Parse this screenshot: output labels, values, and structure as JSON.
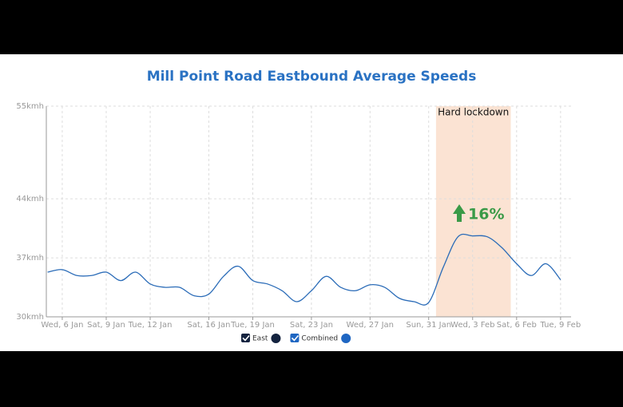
{
  "chart_data": {
    "type": "line",
    "title": "Mill Point Road Eastbound Average Speeds",
    "categories": [
      null,
      "Wed, 6 Jan",
      null,
      null,
      "Sat, 9 Jan",
      null,
      null,
      "Tue, 12 Jan",
      null,
      null,
      null,
      "Sat, 16 Jan",
      null,
      null,
      "Tue, 19 Jan",
      null,
      null,
      null,
      "Sat, 23 Jan",
      null,
      null,
      null,
      "Wed, 27 Jan",
      null,
      null,
      null,
      "Sun, 31 Jan",
      null,
      null,
      "Wed, 3 Feb",
      null,
      null,
      "Sat, 6 Feb",
      null,
      null,
      "Tue, 9 Feb"
    ],
    "series": [
      {
        "name": "Combined",
        "color": "#2b6cb8",
        "values": [
          35.3,
          35.6,
          34.9,
          34.9,
          35.3,
          34.3,
          35.3,
          33.9,
          33.5,
          33.5,
          32.5,
          32.7,
          34.8,
          36.0,
          34.3,
          33.9,
          33.1,
          31.8,
          33.1,
          34.8,
          33.5,
          33.1,
          33.8,
          33.5,
          32.2,
          31.8,
          31.7,
          35.9,
          39.5,
          39.6,
          39.5,
          38.2,
          36.3,
          34.9,
          36.3,
          34.4
        ]
      }
    ],
    "legend": [
      {
        "name": "East",
        "color": "#14233f"
      },
      {
        "name": "Combined",
        "color": "#1f66c2"
      }
    ],
    "ylim": [
      30,
      55
    ],
    "yticks": [
      {
        "value": 30,
        "label": "30kmh"
      },
      {
        "value": 37,
        "label": "37kmh"
      },
      {
        "value": 44,
        "label": "44kmh"
      },
      {
        "value": 55,
        "label": "55kmh"
      }
    ],
    "grid": true,
    "highlight": {
      "label": "Hard lockdown",
      "color": "#fbe3d3"
    },
    "annotation": {
      "text": "16%",
      "color": "#3a9a47"
    }
  }
}
